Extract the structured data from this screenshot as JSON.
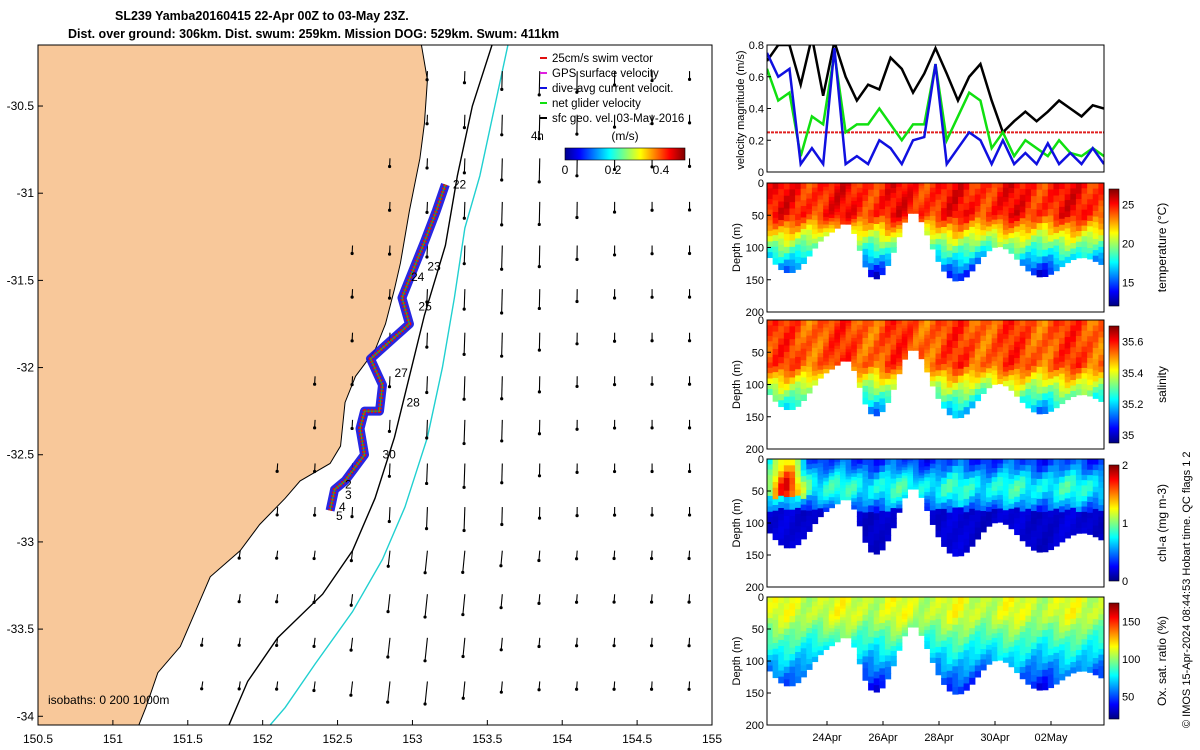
{
  "title": {
    "line1": "SL239 Yamba20160415 22-Apr 00Z to 03-May 23Z.",
    "line2": "Dist. over ground: 306km. Dist. swum: 259km. Mission DOG: 529km. Swum: 411km"
  },
  "footer_note": "© IMOS 15-Apr-2024 08:44:53 Hobart time. QC flags 1 2",
  "colors": {
    "land": "#f8c89a",
    "swim_vector": "#e01010",
    "gps_velocity": "#e020e0",
    "dive_current": "#1010e0",
    "net_velocity": "#10e010",
    "isobath_200": "#000000",
    "isobath_1000": "#20d0d0",
    "speed_ref": "#e02020"
  },
  "chart_data": [
    {
      "type": "map",
      "xlim": [
        150.5,
        155
      ],
      "ylim": [
        -34.05,
        -30.15
      ],
      "xticks": [
        "150.5",
        "151",
        "151.5",
        "152",
        "152.5",
        "153",
        "153.5",
        "154",
        "154.5",
        "155"
      ],
      "yticks": [
        "-30.5",
        "-31",
        "-31.5",
        "-32",
        "-32.5",
        "-33",
        "-33.5",
        "-34"
      ],
      "legend": [
        "25cm/s swim vector",
        "GPS surface velocity",
        "dive-avg current velocit.",
        "net glider velocity",
        "sfc geo. vel. 03-May-2016"
      ],
      "legend_tag": "4h",
      "colorbar": {
        "label": "(m/s)",
        "ticks": [
          "0",
          "0.2",
          "0.4"
        ],
        "range": [
          0,
          0.5
        ]
      },
      "isobath_note": "isobaths: 0   200  1000m",
      "track": [
        {
          "lon": 153.22,
          "lat": -30.95
        },
        {
          "lon": 153.16,
          "lat": -31.1
        },
        {
          "lon": 153.08,
          "lat": -31.28
        },
        {
          "lon": 153.0,
          "lat": -31.45
        },
        {
          "lon": 152.93,
          "lat": -31.6
        },
        {
          "lon": 152.98,
          "lat": -31.75
        },
        {
          "lon": 152.85,
          "lat": -31.85
        },
        {
          "lon": 152.72,
          "lat": -31.95
        },
        {
          "lon": 152.8,
          "lat": -32.1
        },
        {
          "lon": 152.78,
          "lat": -32.25
        },
        {
          "lon": 152.68,
          "lat": -32.25
        },
        {
          "lon": 152.65,
          "lat": -32.35
        },
        {
          "lon": 152.68,
          "lat": -32.5
        },
        {
          "lon": 152.55,
          "lat": -32.65
        },
        {
          "lon": 152.48,
          "lat": -32.7
        },
        {
          "lon": 152.45,
          "lat": -32.82
        }
      ],
      "day_labels": [
        {
          "text": "22",
          "lon": 153.27,
          "lat": -30.95
        },
        {
          "text": "23",
          "lon": 153.1,
          "lat": -31.42
        },
        {
          "text": "24",
          "lon": 152.99,
          "lat": -31.48
        },
        {
          "text": "25",
          "lon": 153.04,
          "lat": -31.65
        },
        {
          "text": "27",
          "lon": 152.88,
          "lat": -32.03
        },
        {
          "text": "28",
          "lon": 152.96,
          "lat": -32.2
        },
        {
          "text": "30",
          "lon": 152.8,
          "lat": -32.5
        },
        {
          "text": "2",
          "lon": 152.55,
          "lat": -32.67
        },
        {
          "text": "3",
          "lon": 152.55,
          "lat": -32.73
        },
        {
          "text": "4",
          "lon": 152.51,
          "lat": -32.8
        },
        {
          "text": "5",
          "lon": 152.49,
          "lat": -32.85
        }
      ]
    },
    {
      "type": "line",
      "ylabel": "velocity magnitude (m/s)",
      "ylim": [
        0,
        0.8
      ],
      "yticks": [
        "0",
        "0.2",
        "0.4",
        "0.6",
        "0.8"
      ],
      "xlim": [
        0,
        12
      ],
      "reference_line": 0.25,
      "series": [
        {
          "color": "#000000",
          "x": [
            0,
            0.4,
            0.8,
            1.2,
            1.6,
            2.0,
            2.4,
            2.8,
            3.2,
            3.6,
            4.0,
            4.4,
            4.8,
            5.2,
            5.6,
            6.0,
            6.4,
            6.8,
            7.2,
            7.6,
            8.0,
            8.4,
            8.8,
            9.2,
            9.6,
            10.0,
            10.4,
            10.8,
            11.2,
            11.6,
            12.0
          ],
          "values": [
            0.7,
            0.8,
            0.8,
            0.55,
            0.85,
            0.48,
            0.82,
            0.6,
            0.45,
            0.55,
            0.52,
            0.72,
            0.65,
            0.5,
            0.62,
            0.78,
            0.62,
            0.45,
            0.6,
            0.68,
            0.45,
            0.25,
            0.32,
            0.38,
            0.32,
            0.38,
            0.45,
            0.4,
            0.35,
            0.42,
            0.4
          ]
        },
        {
          "color": "#10e010",
          "x": [
            0,
            0.4,
            0.8,
            1.2,
            1.6,
            2.0,
            2.4,
            2.8,
            3.2,
            3.6,
            4.0,
            4.4,
            4.8,
            5.2,
            5.6,
            6.0,
            6.4,
            6.8,
            7.2,
            7.6,
            8.0,
            8.4,
            8.8,
            9.2,
            9.6,
            10.0,
            10.4,
            10.8,
            11.2,
            11.6,
            12.0
          ],
          "values": [
            0.65,
            0.45,
            0.5,
            0.1,
            0.35,
            0.3,
            0.75,
            0.25,
            0.3,
            0.3,
            0.4,
            0.3,
            0.2,
            0.3,
            0.3,
            0.68,
            0.2,
            0.35,
            0.5,
            0.45,
            0.15,
            0.25,
            0.1,
            0.2,
            0.15,
            0.1,
            0.2,
            0.12,
            0.1,
            0.15,
            0.1
          ]
        },
        {
          "color": "#1010e0",
          "x": [
            0,
            0.4,
            0.8,
            1.2,
            1.6,
            2.0,
            2.4,
            2.8,
            3.2,
            3.6,
            4.0,
            4.4,
            4.8,
            5.2,
            5.6,
            6.0,
            6.4,
            6.8,
            7.2,
            7.6,
            8.0,
            8.4,
            8.8,
            9.2,
            9.6,
            10.0,
            10.4,
            10.8,
            11.2,
            11.6,
            12.0
          ],
          "values": [
            0.75,
            0.6,
            0.65,
            0.05,
            0.15,
            0.05,
            0.78,
            0.05,
            0.1,
            0.05,
            0.2,
            0.15,
            0.05,
            0.2,
            0.22,
            0.68,
            0.05,
            0.15,
            0.25,
            0.2,
            0.05,
            0.2,
            0.05,
            0.12,
            0.05,
            0.18,
            0.05,
            0.12,
            0.05,
            0.15,
            0.05
          ]
        }
      ]
    },
    {
      "type": "heatmap",
      "variable": "temperature",
      "ylabel": "Depth (m)",
      "yticks": [
        "0",
        "50",
        "100",
        "150",
        "200"
      ],
      "ylim": [
        0,
        200
      ],
      "colorbar_label": "temperature (°C)",
      "colorbar_ticks": [
        "15",
        "20",
        "25"
      ],
      "clim": [
        12,
        27
      ]
    },
    {
      "type": "heatmap",
      "variable": "salinity",
      "ylabel": "Depth (m)",
      "yticks": [
        "0",
        "50",
        "100",
        "150",
        "200"
      ],
      "ylim": [
        0,
        200
      ],
      "colorbar_label": "salinity",
      "colorbar_ticks": [
        "35",
        "35.2",
        "35.4",
        "35.6"
      ],
      "clim": [
        34.95,
        35.7
      ]
    },
    {
      "type": "heatmap",
      "variable": "chl-a",
      "ylabel": "Depth (m)",
      "yticks": [
        "0",
        "50",
        "100",
        "150",
        "200"
      ],
      "ylim": [
        0,
        200
      ],
      "colorbar_label": "chl-a (mg m-3)",
      "colorbar_ticks": [
        "0",
        "1",
        "2"
      ],
      "clim": [
        0,
        2
      ]
    },
    {
      "type": "heatmap",
      "variable": "oxygen",
      "ylabel": "Depth (m)",
      "yticks": [
        "0",
        "50",
        "100",
        "150",
        "200"
      ],
      "ylim": [
        0,
        200
      ],
      "colorbar_label": "Ox. sat. ratio (%)",
      "colorbar_ticks": [
        "50",
        "100",
        "150"
      ],
      "clim": [
        20,
        175
      ],
      "xticks": [
        "24Apr",
        "26Apr",
        "28Apr",
        "30Apr",
        "02May"
      ]
    }
  ]
}
